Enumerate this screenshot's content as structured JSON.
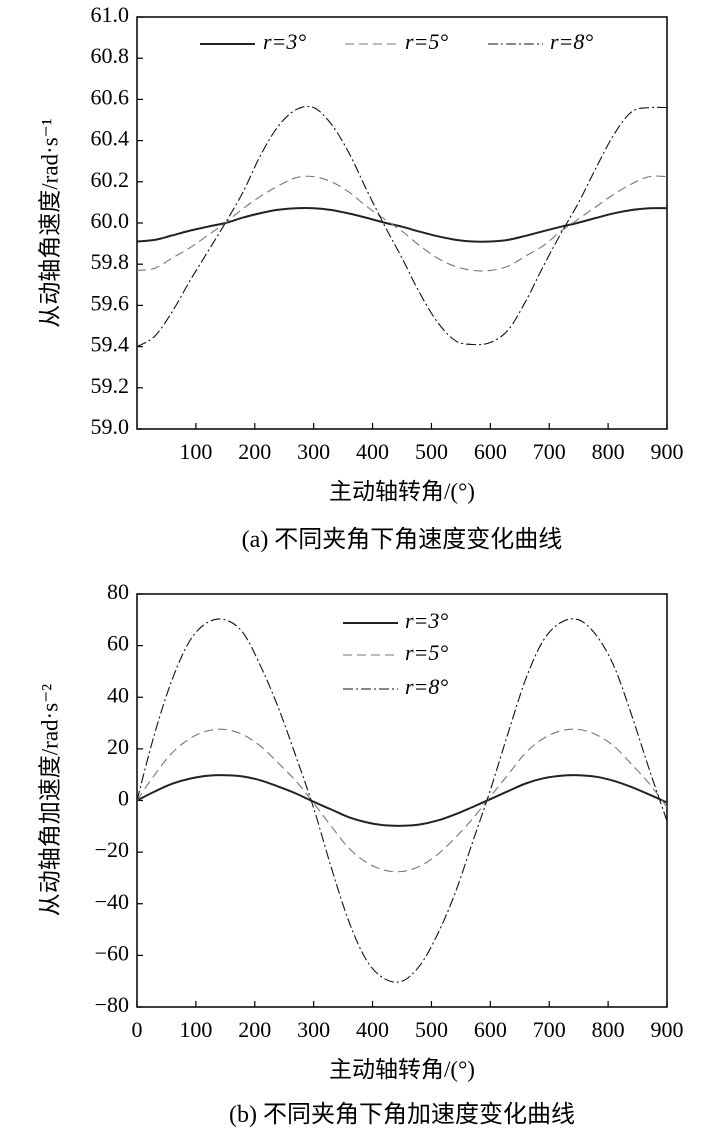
{
  "chart_data": [
    {
      "type": "line",
      "caption": "(a) 不同夹角下角速度变化曲线",
      "xlabel": "主动轴转角/(°)",
      "ylabel": "从动轴角速度/rad·s⁻¹",
      "xlim": [
        0,
        900
      ],
      "ylim": [
        59.0,
        61.0
      ],
      "x_ticks": [
        "100",
        "200",
        "300",
        "400",
        "500",
        "600",
        "700",
        "800",
        "900"
      ],
      "y_ticks": [
        "59.0",
        "59.2",
        "59.4",
        "59.6",
        "59.8",
        "60.0",
        "60.2",
        "60.4",
        "60.6",
        "60.8",
        "61.0"
      ],
      "grid": false,
      "legend_position": "top",
      "x": [
        0,
        30,
        60,
        90,
        120,
        150,
        180,
        210,
        240,
        270,
        300,
        330,
        360,
        390,
        420,
        450,
        480,
        510,
        540,
        570,
        600,
        630,
        660,
        690,
        720,
        750,
        780,
        810,
        840,
        870,
        900
      ],
      "series": [
        {
          "name": "r=3°",
          "style": "solid",
          "values": [
            59.91,
            59.918,
            59.94,
            59.963,
            59.982,
            60.0,
            60.026,
            60.048,
            60.064,
            60.072,
            60.072,
            60.063,
            60.046,
            60.025,
            60.002,
            59.982,
            59.958,
            59.936,
            59.919,
            59.91,
            59.91,
            59.918,
            59.938,
            59.96,
            59.982,
            60.002,
            60.025,
            60.047,
            60.063,
            60.072,
            60.072
          ]
        },
        {
          "name": "r=5°",
          "style": "dashed",
          "values": [
            59.77,
            59.78,
            59.83,
            59.88,
            59.94,
            60.0,
            60.07,
            60.13,
            60.18,
            60.22,
            60.225,
            60.2,
            60.15,
            60.08,
            60.02,
            59.96,
            59.89,
            59.83,
            59.79,
            59.77,
            59.77,
            59.79,
            59.84,
            59.89,
            59.96,
            60.02,
            60.08,
            60.14,
            60.19,
            60.225,
            60.225
          ]
        },
        {
          "name": "r=8°",
          "style": "dashdot",
          "values": [
            59.4,
            59.45,
            59.57,
            59.72,
            59.86,
            60.0,
            60.15,
            60.33,
            60.47,
            60.55,
            60.56,
            60.48,
            60.34,
            60.16,
            59.99,
            59.83,
            59.66,
            59.52,
            59.43,
            59.41,
            59.42,
            59.48,
            59.62,
            59.79,
            59.95,
            60.1,
            60.27,
            60.43,
            60.54,
            60.56,
            60.56
          ]
        }
      ]
    },
    {
      "type": "line",
      "caption": "(b) 不同夹角下角加速度变化曲线",
      "xlabel": "主动轴转角/(°)",
      "ylabel": "从动轴角加速度/rad·s⁻²",
      "xlim": [
        0,
        900
      ],
      "ylim": [
        -80,
        80
      ],
      "x_ticks": [
        "0",
        "100",
        "200",
        "300",
        "400",
        "500",
        "600",
        "700",
        "800",
        "900"
      ],
      "y_ticks": [
        "−80",
        "−60",
        "−40",
        "−20",
        "0",
        "20",
        "40",
        "60",
        "80"
      ],
      "grid": false,
      "legend_position": "top-center",
      "x": [
        0,
        30,
        60,
        90,
        120,
        150,
        180,
        210,
        240,
        270,
        300,
        330,
        360,
        390,
        420,
        450,
        480,
        510,
        540,
        570,
        600,
        630,
        660,
        690,
        720,
        750,
        780,
        810,
        840,
        870,
        900
      ],
      "series": [
        {
          "name": "r=3°",
          "style": "solid",
          "values": [
            0.0,
            3.5,
            6.5,
            8.5,
            9.6,
            9.8,
            9.3,
            7.8,
            5.4,
            2.7,
            -0.5,
            -3.5,
            -6.5,
            -8.5,
            -9.6,
            -9.8,
            -9.3,
            -7.8,
            -5.4,
            -2.5,
            0.5,
            3.6,
            6.6,
            8.6,
            9.6,
            9.8,
            9.2,
            7.6,
            5.2,
            2.3,
            -0.8
          ]
        },
        {
          "name": "r=5°",
          "style": "dashed",
          "values": [
            0.0,
            10.0,
            18.5,
            24.0,
            27.0,
            27.5,
            25.5,
            21.0,
            14.5,
            7.5,
            -1.0,
            -10.0,
            -18.5,
            -24.0,
            -27.0,
            -27.5,
            -25.5,
            -21.0,
            -14.5,
            -7.0,
            1.5,
            10.0,
            18.5,
            24.0,
            27.0,
            27.5,
            25.5,
            21.0,
            14.0,
            6.5,
            -2.5
          ]
        },
        {
          "name": "r=8°",
          "style": "dashdot",
          "values": [
            0.0,
            26.0,
            47.0,
            62.0,
            69.0,
            70.0,
            65.0,
            52.0,
            36.0,
            17.0,
            -3.0,
            -26.0,
            -47.0,
            -62.0,
            -69.0,
            -70.0,
            -64.0,
            -52.0,
            -36.0,
            -16.0,
            4.0,
            26.0,
            47.0,
            62.0,
            69.0,
            70.0,
            64.0,
            52.0,
            33.0,
            12.0,
            -8.0
          ]
        }
      ]
    }
  ]
}
